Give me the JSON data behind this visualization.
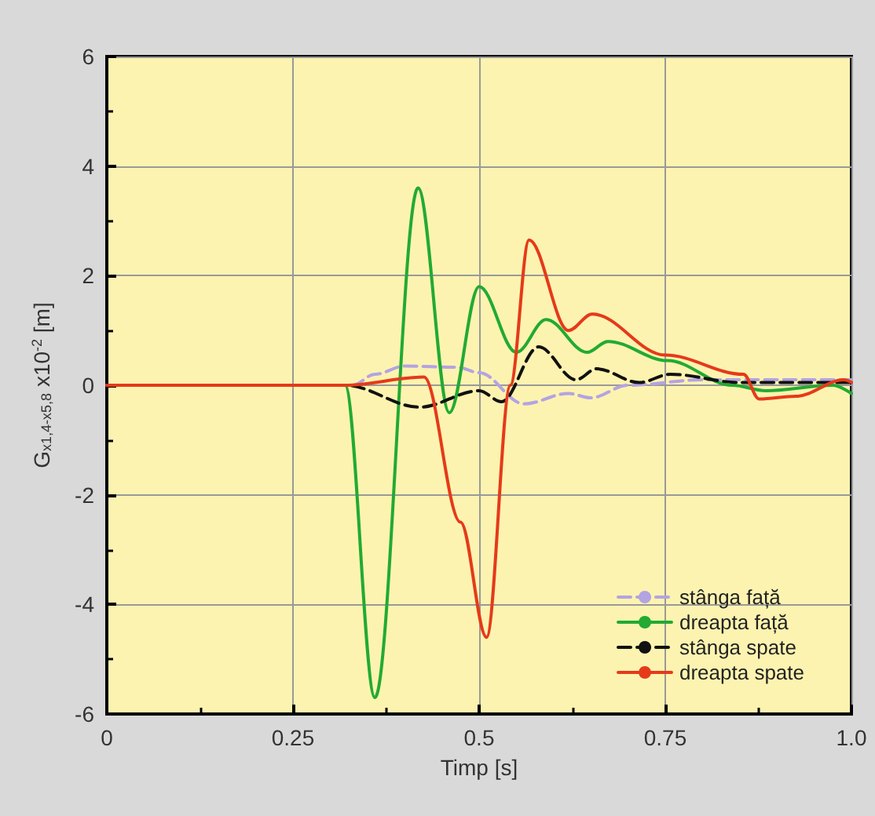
{
  "chart_data": {
    "type": "line",
    "xlabel": "Timp [s]",
    "ylabel": "G$_{x1,4-x5,8}$ x10$^{-2}$ [m]",
    "xlim": [
      0,
      1
    ],
    "xticks": [
      0,
      0.25,
      0.5,
      0.75,
      {
        "value": 1,
        "label": "1.0"
      }
    ],
    "ylim": [
      -6,
      6
    ],
    "yticks": [
      -6,
      -4,
      -2,
      0,
      2,
      4,
      6
    ],
    "grid": true,
    "legend": "bottom right",
    "marker": "none",
    "series": [
      {
        "name": "stânga față",
        "color": "#b3a3e3",
        "line_style": "dashed",
        "x": [
          0,
          0.33,
          0.36,
          0.4,
          0.47,
          0.5,
          0.56,
          0.62,
          0.65,
          0.7,
          0.8,
          1
        ],
        "values": [
          0,
          0,
          0.2,
          0.35,
          0.33,
          0.23,
          -0.34,
          -0.15,
          -0.23,
          0,
          0.1,
          0.1
        ]
      },
      {
        "name": "dreapta față",
        "color": "#22aa33",
        "line_style": "solid",
        "x": [
          0,
          0.32,
          0.36,
          0.418,
          0.46,
          0.5,
          0.55,
          0.59,
          0.645,
          0.673,
          0.753,
          0.84,
          0.885,
          0.975,
          1
        ],
        "values": [
          0,
          0,
          -5.7,
          3.6,
          -0.5,
          1.8,
          0.6,
          1.2,
          0.6,
          0.8,
          0.45,
          0,
          -0.1,
          0,
          -0.15
        ]
      },
      {
        "name": "stânga spate",
        "color": "#111111",
        "line_style": "dashed",
        "x": [
          0,
          0.32,
          0.42,
          0.5,
          0.53,
          0.58,
          0.63,
          0.658,
          0.715,
          0.757,
          0.85,
          1
        ],
        "values": [
          0,
          0,
          -0.4,
          -0.1,
          -0.3,
          0.7,
          0.1,
          0.3,
          0.05,
          0.2,
          0.05,
          0.05
        ]
      },
      {
        "name": "dreapta spate",
        "color": "#e53a1a",
        "line_style": "solid",
        "x": [
          0,
          0.32,
          0.426,
          0.475,
          0.51,
          0.542,
          0.567,
          0.62,
          0.652,
          0.75,
          0.855,
          0.876,
          0.926,
          0.99,
          1
        ],
        "values": [
          0,
          0,
          0.15,
          -2.5,
          -4.6,
          0,
          2.65,
          1,
          1.3,
          0.55,
          0.2,
          -0.25,
          -0.2,
          0.1,
          0.05
        ]
      }
    ]
  }
}
